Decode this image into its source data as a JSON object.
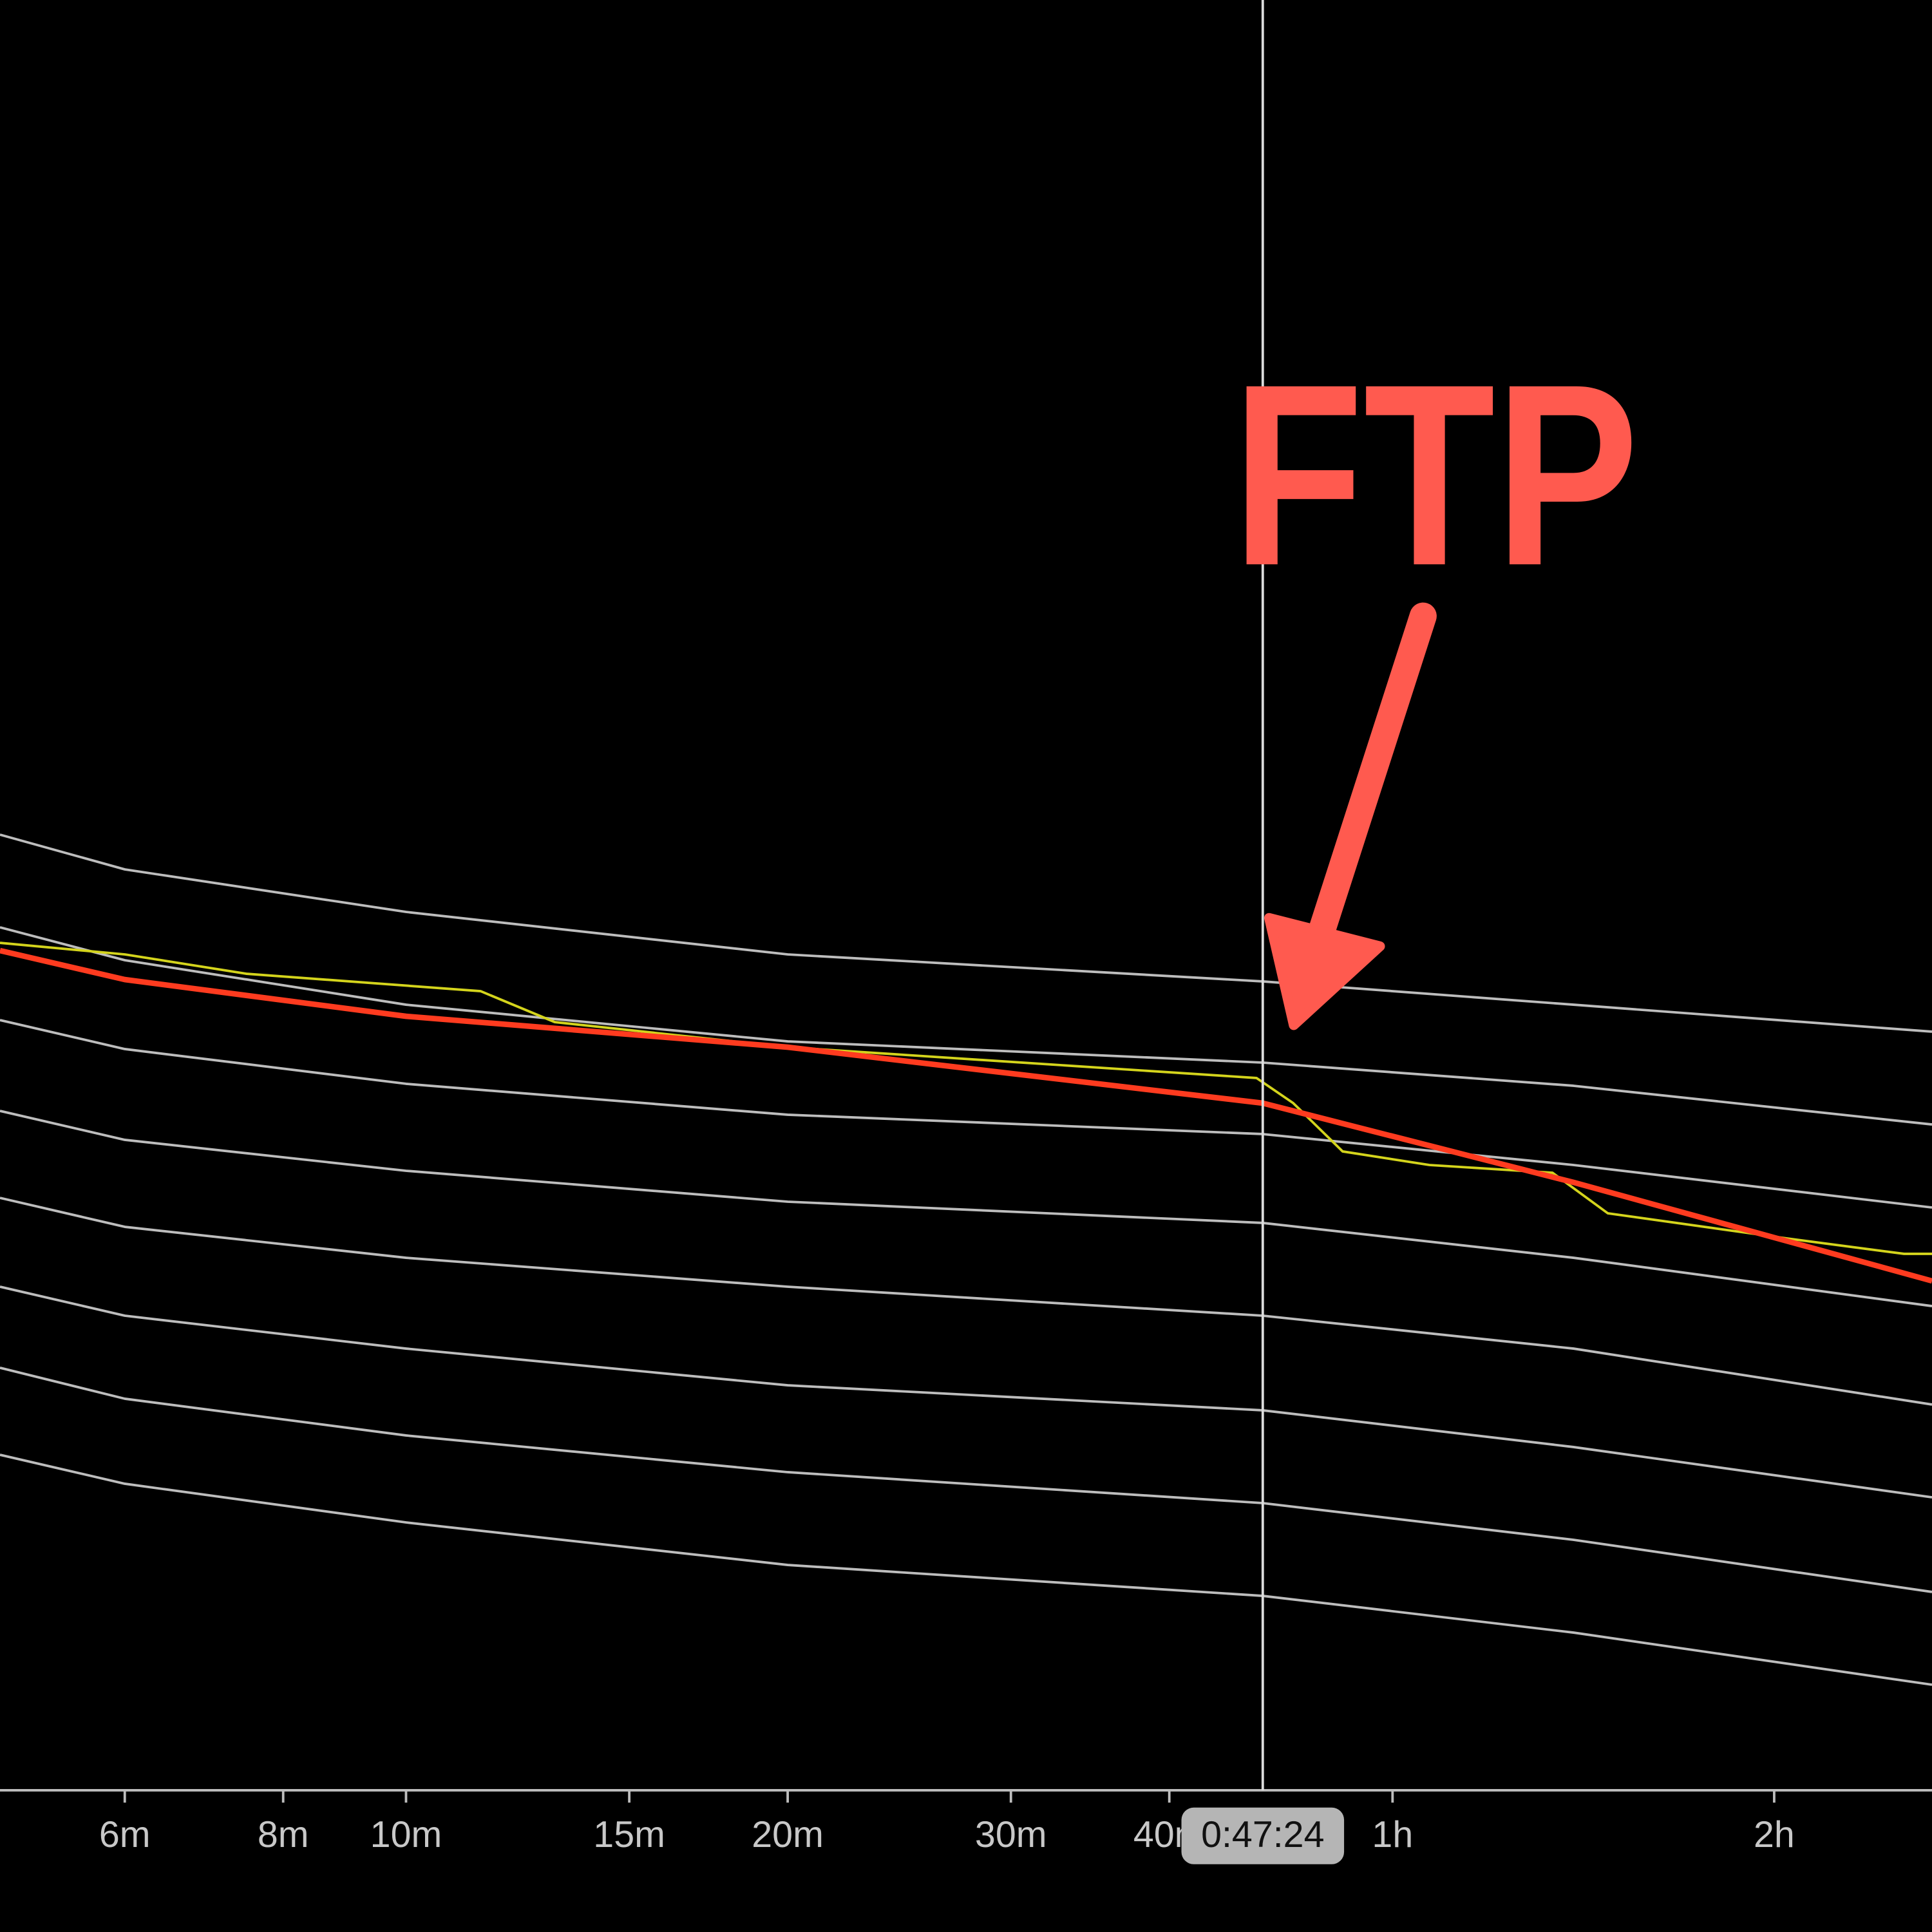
{
  "chart_data": {
    "type": "line",
    "xscale": "log",
    "xlim": [
      287,
      9590
    ],
    "ylim": [
      0,
      100
    ],
    "xticks": [
      {
        "value": 360,
        "label": "6m"
      },
      {
        "value": 480,
        "label": "8m"
      },
      {
        "value": 600,
        "label": "10m"
      },
      {
        "value": 900,
        "label": "15m"
      },
      {
        "value": 1200,
        "label": "20m"
      },
      {
        "value": 1800,
        "label": "30m"
      },
      {
        "value": 2400,
        "label": "40m"
      },
      {
        "value": 3600,
        "label": "1h"
      },
      {
        "value": 7200,
        "label": "2h"
      }
    ],
    "cursor": {
      "value": 2844,
      "label": "0:47:24"
    },
    "annotation": "FTP",
    "series": [
      {
        "color": "#bdbdbd",
        "x": [
          287,
          360,
          600,
          1200,
          2844,
          5000,
          9590
        ],
        "values": [
          56.8,
          55.0,
          52.8,
          50.6,
          49.2,
          48.0,
          46.6
        ]
      },
      {
        "color": "#bdbdbd",
        "x": [
          287,
          360,
          600,
          1200,
          2844,
          5000,
          9590
        ],
        "values": [
          52.0,
          50.3,
          48.0,
          46.1,
          45.0,
          43.8,
          41.8
        ]
      },
      {
        "color": "#bdbdbd",
        "x": [
          287,
          360,
          600,
          1200,
          2844,
          5000,
          9590
        ],
        "values": [
          47.2,
          45.7,
          43.9,
          42.3,
          41.3,
          39.7,
          37.5
        ]
      },
      {
        "color": "#bdbdbd",
        "x": [
          287,
          360,
          600,
          1200,
          2844,
          5000,
          9590
        ],
        "values": [
          42.5,
          41.0,
          39.4,
          37.8,
          36.7,
          34.9,
          32.4
        ]
      },
      {
        "color": "#bdbdbd",
        "x": [
          287,
          360,
          600,
          1200,
          2844,
          5000,
          9590
        ],
        "values": [
          38.0,
          36.5,
          34.9,
          33.4,
          31.9,
          30.2,
          27.3
        ]
      },
      {
        "color": "#bdbdbd",
        "x": [
          287,
          360,
          600,
          1200,
          2844,
          5000,
          9590
        ],
        "values": [
          33.4,
          31.9,
          30.2,
          28.3,
          27.0,
          25.1,
          22.5
        ]
      },
      {
        "color": "#bdbdbd",
        "x": [
          287,
          360,
          600,
          1200,
          2844,
          5000,
          9590
        ],
        "values": [
          29.2,
          27.6,
          25.7,
          23.8,
          22.2,
          20.3,
          17.6
        ]
      },
      {
        "color": "#bdbdbd",
        "x": [
          287,
          360,
          600,
          1200,
          2844,
          5000,
          9590
        ],
        "values": [
          24.7,
          23.2,
          21.2,
          19.0,
          17.4,
          15.5,
          12.8
        ]
      },
      {
        "color": "#d4d41c",
        "x": [
          287,
          360,
          449,
          687,
          786,
          1200,
          2812,
          3006,
          3288,
          3849,
          4814,
          5323,
          7369,
          9115,
          9590
        ],
        "values": [
          51.2,
          50.6,
          49.6,
          48.7,
          47.1,
          45.8,
          44.2,
          42.9,
          40.4,
          39.7,
          39.3,
          37.2,
          35.9,
          35.1,
          35.1
        ]
      },
      {
        "color": "#ff3b1f",
        "x": [
          287,
          360,
          600,
          1200,
          2844,
          5000,
          9590
        ],
        "values": [
          50.8,
          49.3,
          47.4,
          45.8,
          42.9,
          38.8,
          33.7
        ]
      }
    ]
  }
}
